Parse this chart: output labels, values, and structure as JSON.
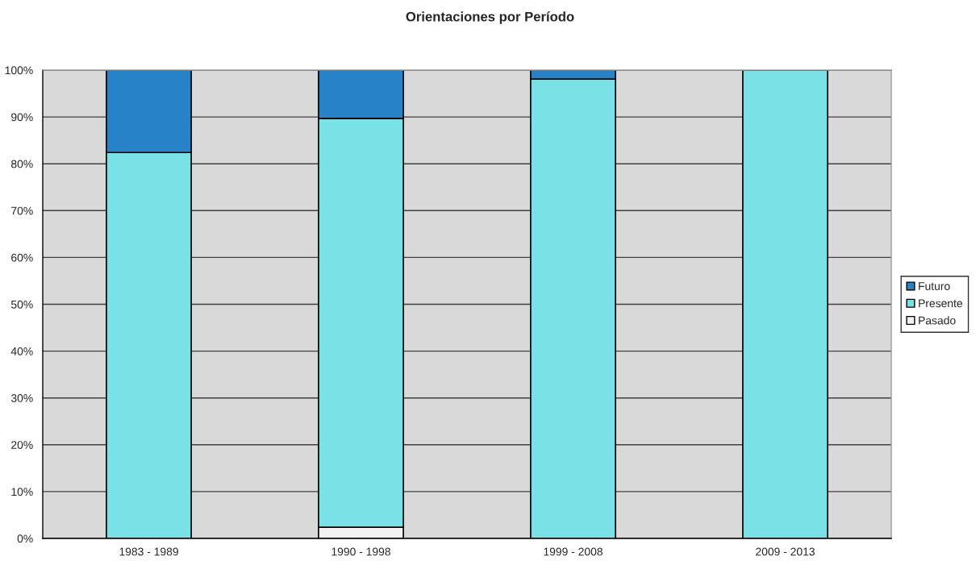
{
  "chart_data": {
    "type": "bar",
    "title": "Orientaciones por Período",
    "stacked": true,
    "categories": [
      "1983 - 1989",
      "1990 - 1998",
      "1999 - 2008",
      "2009 - 2013"
    ],
    "series": [
      {
        "name": "Pasado",
        "color": "#f2f2f2",
        "values": [
          null,
          2.4,
          null,
          null
        ]
      },
      {
        "name": "Presente",
        "color": "#7ae1e6",
        "values": [
          82.4,
          87.3,
          98.1,
          100
        ]
      },
      {
        "name": "Futuro",
        "color": "#2782c7",
        "values": [
          17.6,
          10.3,
          1.9,
          null
        ]
      }
    ],
    "ylim": [
      0,
      100
    ],
    "yticks": [
      {
        "value": 0,
        "label": "0%"
      },
      {
        "value": 10,
        "label": "10%"
      },
      {
        "value": 20,
        "label": "20%"
      },
      {
        "value": 30,
        "label": "30%"
      },
      {
        "value": 40,
        "label": "40%"
      },
      {
        "value": 50,
        "label": "50%"
      },
      {
        "value": 60,
        "label": "60%"
      },
      {
        "value": 70,
        "label": "70%"
      },
      {
        "value": 80,
        "label": "80%"
      },
      {
        "value": 90,
        "label": "90%"
      },
      {
        "value": 100,
        "label": "100%"
      }
    ],
    "grid": "y",
    "legend": "right"
  }
}
